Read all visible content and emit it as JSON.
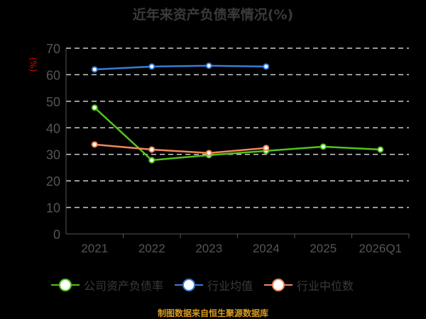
{
  "chart_data": {
    "type": "line",
    "title": "近年来资产负债率情况(%)",
    "ylabel": "(%)",
    "xlabel": "",
    "categories": [
      "2021",
      "2022",
      "2023",
      "2024",
      "2025",
      "2026Q1"
    ],
    "ylim": [
      0,
      70
    ],
    "yticks": [
      0,
      10,
      20,
      30,
      40,
      50,
      60,
      70
    ],
    "grid": true,
    "legend_position": "bottom",
    "series": [
      {
        "name": "公司资产负债率",
        "color": "#52c41a",
        "values": [
          47.6,
          27.8,
          29.7,
          31.3,
          32.9,
          31.8
        ]
      },
      {
        "name": "行业均值",
        "color": "#3a7bd5",
        "values": [
          62.0,
          63.1,
          63.4,
          63.1,
          null,
          null
        ]
      },
      {
        "name": "行业中位数",
        "color": "#f4875a",
        "values": [
          33.7,
          31.8,
          30.5,
          32.4,
          null,
          null
        ]
      }
    ]
  },
  "footer": "制图数据来自恒生聚源数据库"
}
